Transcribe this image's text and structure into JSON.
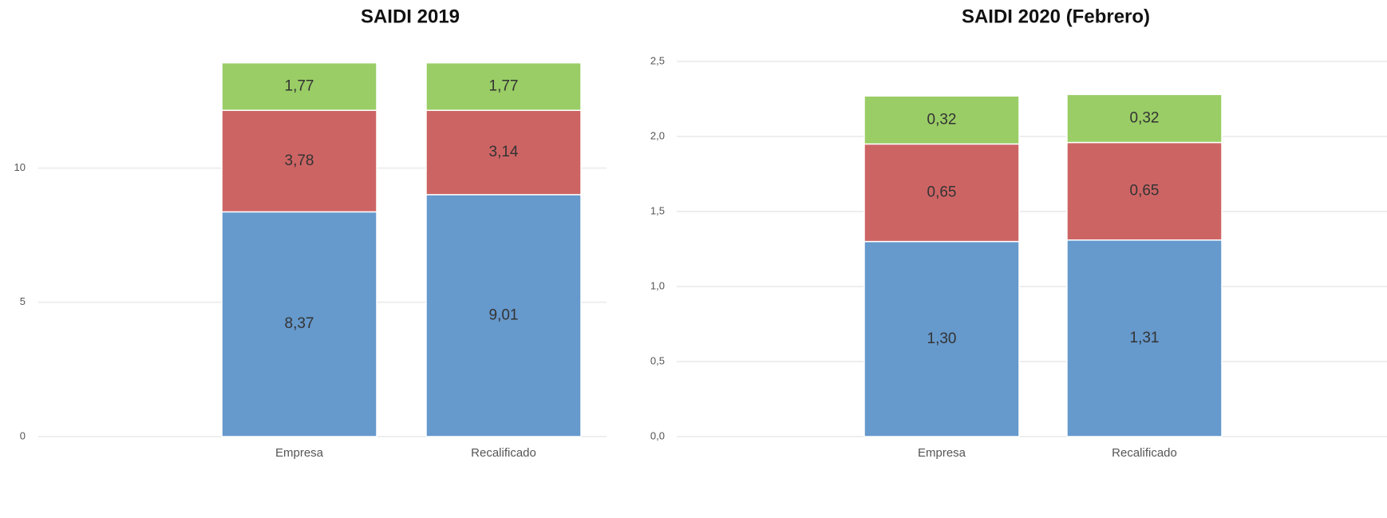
{
  "chart_data": [
    {
      "type": "stacked_bar",
      "title": "SAIDI 2019",
      "categories": [
        "Empresa",
        "Recalificado"
      ],
      "series": [
        {
          "color": "#6699cc",
          "values": [
            8.37,
            9.01
          ],
          "value_labels": [
            "8,37",
            "9,01"
          ]
        },
        {
          "color": "#cd6464",
          "values": [
            3.78,
            3.14
          ],
          "value_labels": [
            "3,78",
            "3,14"
          ]
        },
        {
          "color": "#9acd66",
          "values": [
            1.77,
            1.77
          ],
          "value_labels": [
            "1,77",
            "1,77"
          ]
        }
      ],
      "ylim": [
        0,
        14
      ],
      "yticks": [
        0,
        5,
        10
      ],
      "grid": true
    },
    {
      "type": "stacked_bar",
      "title": "SAIDI 2020 (Febrero)",
      "categories": [
        "Empresa",
        "Recalificado"
      ],
      "series": [
        {
          "color": "#6699cc",
          "values": [
            1.3,
            1.31
          ],
          "value_labels": [
            "1,30",
            "1,31"
          ]
        },
        {
          "color": "#cd6464",
          "values": [
            0.65,
            0.65
          ],
          "value_labels": [
            "0,65",
            "0,65"
          ]
        },
        {
          "color": "#9acd66",
          "values": [
            0.32,
            0.32
          ],
          "value_labels": [
            "0,32",
            "0,32"
          ]
        }
      ],
      "ylim": [
        0,
        2.5
      ],
      "yticks": [
        {
          "value": 0,
          "label": "0,0"
        },
        {
          "value": 0.5,
          "label": "0,5"
        },
        {
          "value": 1,
          "label": "1,0"
        },
        {
          "value": 1.5,
          "label": "1,5"
        },
        {
          "value": 2,
          "label": "2,0"
        },
        {
          "value": 2.5,
          "label": "2,5"
        }
      ],
      "grid": true
    }
  ]
}
